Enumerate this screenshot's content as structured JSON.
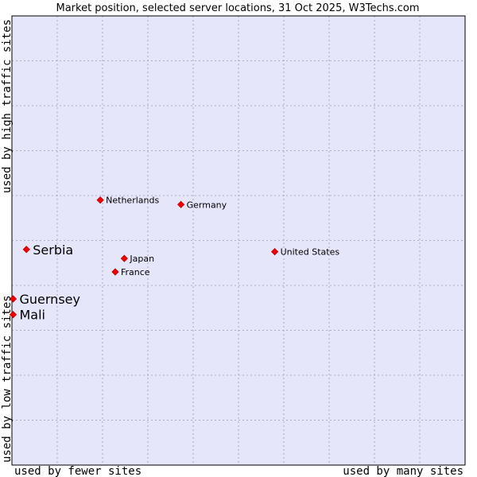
{
  "chart_data": {
    "type": "scatter",
    "title": "Market position, selected server locations, 31 Oct 2025, W3Techs.com",
    "xlabel_left": "used by fewer sites",
    "xlabel_right": "used by many sites",
    "ylabel_bottom": "used by low traffic sites",
    "ylabel_top": "used by high traffic sites",
    "xlim": [
      0,
      10
    ],
    "ylim": [
      0,
      10
    ],
    "grid": true,
    "colors": {
      "plot_bg": "#e6e6fa",
      "grid": "#9999bb",
      "border": "#000000",
      "marker": "#ee0000"
    },
    "points": [
      {
        "label": "Netherlands",
        "x": 1.95,
        "y": 5.9,
        "emphasis": false
      },
      {
        "label": "Germany",
        "x": 3.73,
        "y": 5.8,
        "emphasis": false
      },
      {
        "label": "Serbia",
        "x": 0.32,
        "y": 4.8,
        "emphasis": true
      },
      {
        "label": "Japan",
        "x": 2.48,
        "y": 4.6,
        "emphasis": false
      },
      {
        "label": "United States",
        "x": 5.8,
        "y": 4.75,
        "emphasis": false
      },
      {
        "label": "France",
        "x": 2.28,
        "y": 4.3,
        "emphasis": false
      },
      {
        "label": "Guernsey",
        "x": 0.0,
        "y": 3.7,
        "emphasis": true
      },
      {
        "label": "Mali",
        "x": 0.0,
        "y": 3.35,
        "emphasis": true
      }
    ]
  }
}
